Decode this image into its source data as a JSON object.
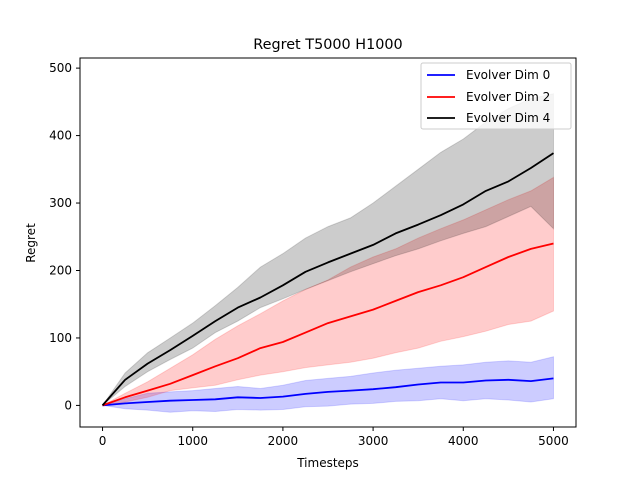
{
  "chart_data": {
    "type": "line",
    "title": "Regret T5000 H1000",
    "xlabel": "Timesteps",
    "ylabel": "Regret",
    "xlim": [
      -250,
      5250
    ],
    "ylim": [
      -32,
      515
    ],
    "xticks": [
      0,
      1000,
      2000,
      3000,
      4000,
      5000
    ],
    "yticks": [
      0,
      100,
      200,
      300,
      400,
      500
    ],
    "grid": false,
    "legend_position": "top-right",
    "series": [
      {
        "name": "Evolver Dim 0",
        "color": "#0000ff",
        "x": [
          0,
          250,
          500,
          750,
          1000,
          1250,
          1500,
          1750,
          2000,
          2250,
          2500,
          2750,
          3000,
          3250,
          3500,
          3750,
          4000,
          4250,
          4500,
          4750,
          5000
        ],
        "mean": [
          0,
          3,
          5,
          7,
          8,
          9,
          12,
          11,
          13,
          17,
          20,
          22,
          24,
          27,
          31,
          34,
          34,
          37,
          38,
          36,
          40
        ],
        "lower": [
          0,
          -5,
          -7,
          -10,
          -8,
          -9,
          -6,
          -7,
          -6,
          -2,
          -1,
          2,
          3,
          6,
          7,
          10,
          7,
          10,
          8,
          5,
          10
        ],
        "upper": [
          0,
          10,
          18,
          20,
          22,
          25,
          28,
          25,
          30,
          37,
          40,
          43,
          48,
          52,
          55,
          58,
          60,
          64,
          66,
          64,
          72
        ]
      },
      {
        "name": "Evolver Dim 2",
        "color": "#ff0000",
        "x": [
          0,
          250,
          500,
          750,
          1000,
          1250,
          1500,
          1750,
          2000,
          2250,
          2500,
          2750,
          3000,
          3250,
          3500,
          3750,
          4000,
          4250,
          4500,
          4750,
          5000
        ],
        "mean": [
          0,
          12,
          22,
          32,
          45,
          58,
          70,
          85,
          94,
          108,
          122,
          132,
          142,
          155,
          168,
          178,
          190,
          205,
          220,
          232,
          240
        ],
        "lower": [
          0,
          5,
          12,
          22,
          26,
          30,
          38,
          45,
          50,
          56,
          60,
          64,
          70,
          78,
          85,
          95,
          102,
          110,
          120,
          125,
          140
        ],
        "upper": [
          0,
          18,
          35,
          55,
          75,
          98,
          118,
          136,
          155,
          172,
          186,
          205,
          220,
          232,
          248,
          262,
          275,
          290,
          305,
          318,
          338
        ]
      },
      {
        "name": "Evolver Dim 4",
        "color": "#000000",
        "x": [
          0,
          250,
          500,
          750,
          1000,
          1250,
          1500,
          1750,
          2000,
          2250,
          2500,
          2750,
          3000,
          3250,
          3500,
          3750,
          4000,
          4250,
          4500,
          4750,
          5000
        ],
        "mean": [
          0,
          38,
          62,
          82,
          103,
          125,
          145,
          160,
          178,
          198,
          212,
          225,
          238,
          255,
          268,
          282,
          298,
          318,
          332,
          352,
          374
        ],
        "lower": [
          0,
          28,
          50,
          68,
          85,
          108,
          125,
          145,
          158,
          172,
          185,
          198,
          210,
          222,
          232,
          244,
          255,
          265,
          280,
          295,
          262
        ],
        "upper": [
          0,
          48,
          78,
          100,
          122,
          148,
          175,
          205,
          225,
          248,
          265,
          278,
          300,
          325,
          350,
          375,
          395,
          420,
          440,
          455,
          462
        ]
      }
    ]
  }
}
